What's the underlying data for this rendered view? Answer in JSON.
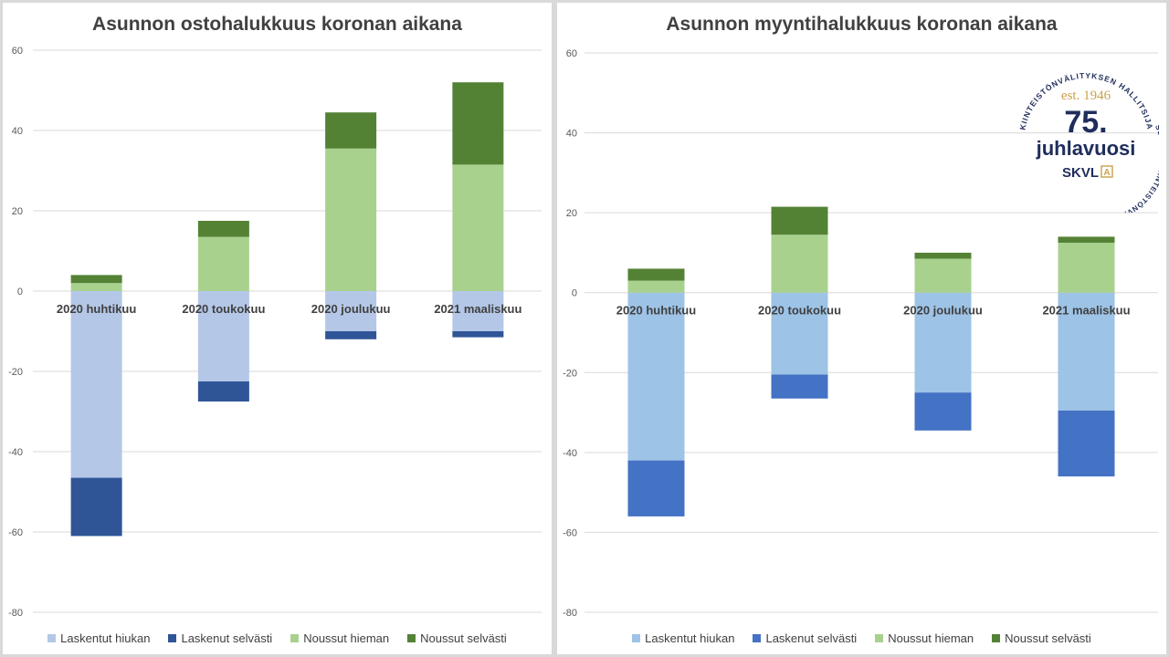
{
  "chart_data": [
    {
      "type": "bar",
      "stacked": true,
      "title": "Asunnon ostohalukkuus koronan aikana",
      "categories": [
        "2020 huhtikuu",
        "2020 toukokuu",
        "2020 joulukuu",
        "2021 maaliskuu"
      ],
      "ylim": [
        -80,
        60
      ],
      "yticks": [
        60,
        40,
        20,
        0,
        -20,
        -40,
        -60,
        -80
      ],
      "grid": true,
      "legend_position": "bottom",
      "series": [
        {
          "name": "Laskentut hiukan",
          "color": "#b4c7e7",
          "values": [
            -46.5,
            -22.5,
            -10,
            -10
          ]
        },
        {
          "name": "Laskenut selvästi",
          "color": "#2f5597",
          "values": [
            -14.5,
            -5,
            -2,
            -1.5
          ]
        },
        {
          "name": "Noussut hieman",
          "color": "#a9d18e",
          "values": [
            2,
            13.5,
            35.5,
            31.5
          ]
        },
        {
          "name": "Noussut selvästi",
          "color": "#548235",
          "values": [
            2,
            4,
            9,
            20.5
          ]
        }
      ]
    },
    {
      "type": "bar",
      "stacked": true,
      "title": "Asunnon myyntihalukkuus koronan aikana",
      "categories": [
        "2020 huhtikuu",
        "2020 toukokuu",
        "2020 joulukuu",
        "2021 maaliskuu"
      ],
      "ylim": [
        -80,
        60
      ],
      "yticks": [
        60,
        40,
        20,
        0,
        -20,
        -40,
        -60,
        -80
      ],
      "grid": true,
      "legend_position": "bottom",
      "series": [
        {
          "name": "Laskentut hiukan",
          "color": "#9dc3e6",
          "values": [
            -42,
            -20.5,
            -25,
            -29.5
          ]
        },
        {
          "name": "Laskenut selvästi",
          "color": "#4472c4",
          "values": [
            -14,
            -6,
            -9.5,
            -16.5
          ]
        },
        {
          "name": "Noussut hieman",
          "color": "#a9d18e",
          "values": [
            3,
            14.5,
            8.5,
            12.5
          ]
        },
        {
          "name": "Noussut selvästi",
          "color": "#548235",
          "values": [
            3,
            7,
            1.5,
            1.5
          ]
        }
      ]
    }
  ],
  "logo": {
    "ring_top": "KIINTEISTÖNVÄLITYKSEN HALLITSIJA",
    "ring_right": "SUOMEN KIINTEISTÖNVÄLITTÄJÄT RY",
    "est": "est. 1946",
    "number": "75.",
    "word": "juhlavuosi",
    "brand": "SKVL",
    "brand_mark": "A",
    "color_navy": "#1f2d5c",
    "color_gold": "#c9a24a"
  }
}
